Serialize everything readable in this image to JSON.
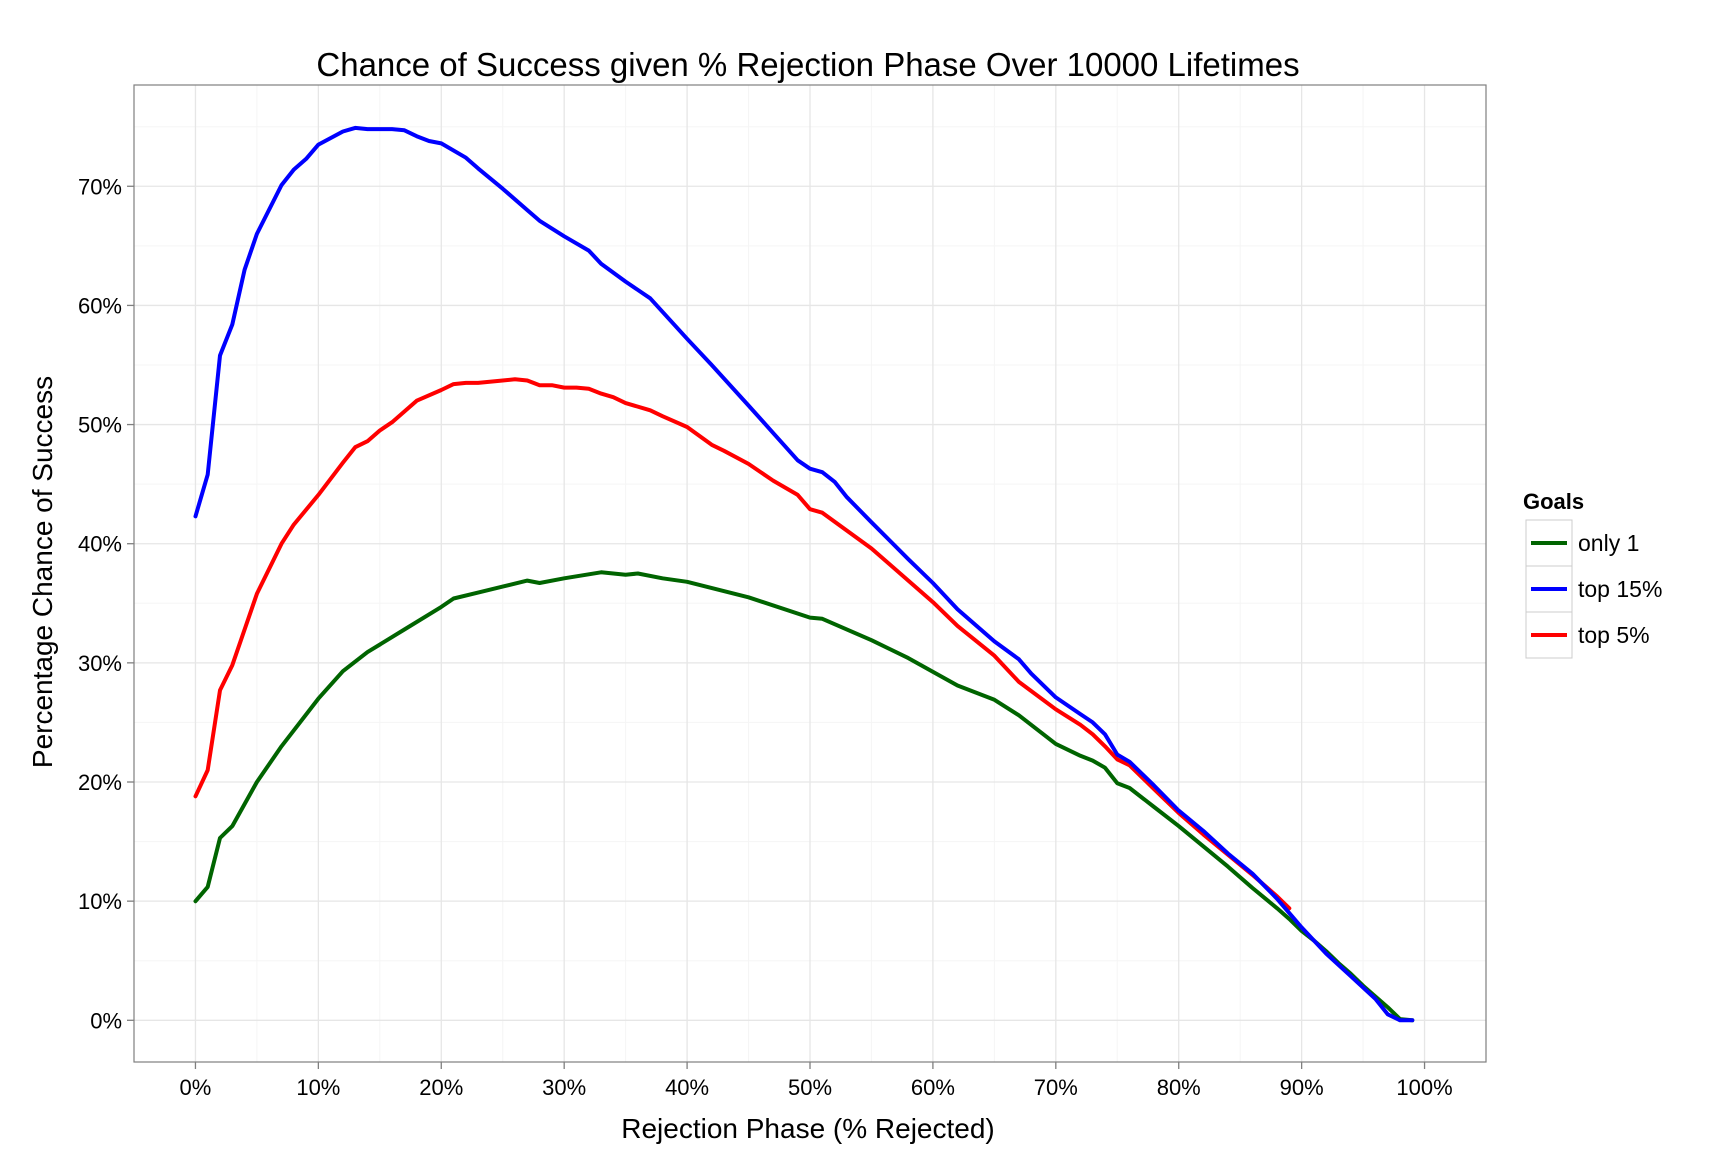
{
  "chart_data": {
    "type": "line",
    "title": "Chance of Success given % Rejection Phase Over 10000 Lifetimes",
    "xlabel": "Rejection Phase (% Rejected)",
    "ylabel": "Percentage Chance of Success",
    "xlim": [
      -5,
      105
    ],
    "ylim": [
      -3.5,
      78.5
    ],
    "x_ticks": [
      0,
      10,
      20,
      30,
      40,
      50,
      60,
      70,
      80,
      90,
      100
    ],
    "x_tick_labels": [
      "0%",
      "10%",
      "20%",
      "30%",
      "40%",
      "50%",
      "60%",
      "70%",
      "80%",
      "90%",
      "100%"
    ],
    "y_ticks": [
      0,
      10,
      20,
      30,
      40,
      50,
      60,
      70
    ],
    "y_tick_labels": [
      "0%",
      "10%",
      "20%",
      "30%",
      "40%",
      "50%",
      "60%",
      "70%"
    ],
    "grid": true,
    "legend": {
      "title": "Goals",
      "position": "right"
    },
    "series": [
      {
        "name": "only 1",
        "color": "#006400",
        "x": [
          0,
          1,
          2,
          3,
          5,
          7,
          10,
          12,
          14,
          17,
          20,
          21,
          23,
          25,
          27,
          28,
          30,
          33,
          35,
          36,
          38,
          40,
          45,
          50,
          51,
          55,
          58,
          62,
          65,
          67,
          70,
          72,
          73,
          74,
          75,
          76,
          78,
          80,
          82,
          84,
          86,
          88,
          89,
          90,
          91,
          92,
          93,
          94,
          95,
          96,
          97,
          98,
          99
        ],
        "y": [
          10,
          11.2,
          15.3,
          16.3,
          20,
          23,
          27,
          29.3,
          30.9,
          32.8,
          34.7,
          35.4,
          35.9,
          36.4,
          36.9,
          36.7,
          37.1,
          37.6,
          37.4,
          37.5,
          37.1,
          36.8,
          35.5,
          33.8,
          33.7,
          31.9,
          30.4,
          28.1,
          26.9,
          25.6,
          23.2,
          22.2,
          21.8,
          21.2,
          19.9,
          19.5,
          17.9,
          16.3,
          14.6,
          12.9,
          11.1,
          9.4,
          8.5,
          7.5,
          6.7,
          5.8,
          4.8,
          3.9,
          2.9,
          2,
          1.1,
          0.1,
          0
        ]
      },
      {
        "name": "top 15%",
        "color": "#0000FF",
        "x": [
          0,
          1,
          2,
          3,
          4,
          5,
          7,
          8,
          9,
          10,
          12,
          13,
          14,
          15,
          16,
          17,
          18,
          19,
          20,
          22,
          23,
          25,
          27,
          28,
          30,
          32,
          33,
          35,
          37,
          40,
          42,
          45,
          47,
          49,
          50,
          51,
          52,
          53,
          55,
          58,
          60,
          62,
          65,
          67,
          68,
          70,
          72,
          73,
          74,
          75,
          76,
          78,
          80,
          82,
          84,
          86,
          88,
          90,
          92,
          94,
          96,
          97,
          98,
          99
        ],
        "y": [
          42.3,
          45.8,
          55.8,
          58.4,
          63,
          66,
          70.1,
          71.4,
          72.3,
          73.5,
          74.6,
          74.9,
          74.8,
          74.8,
          74.8,
          74.7,
          74.2,
          73.8,
          73.6,
          72.4,
          71.5,
          69.8,
          68,
          67.1,
          65.8,
          64.6,
          63.5,
          62,
          60.6,
          57.2,
          55,
          51.6,
          49.3,
          47,
          46.3,
          46,
          45.2,
          43.9,
          41.8,
          38.7,
          36.7,
          34.5,
          31.8,
          30.3,
          29.1,
          27.1,
          25.7,
          25,
          24,
          22.3,
          21.7,
          19.7,
          17.6,
          15.9,
          14,
          12.3,
          10.2,
          7.8,
          5.6,
          3.7,
          1.8,
          0.5,
          0,
          0
        ]
      },
      {
        "name": "top 5%",
        "color": "#FF0000",
        "x": [
          0,
          1,
          2,
          3,
          4,
          5,
          7,
          8,
          10,
          12,
          13,
          14,
          15,
          16,
          17,
          18,
          20,
          21,
          22,
          23,
          25,
          26,
          27,
          28,
          29,
          30,
          31,
          32,
          33,
          34,
          35,
          37,
          38,
          40,
          42,
          43,
          45,
          47,
          49,
          50,
          51,
          53,
          55,
          58,
          60,
          62,
          65,
          67,
          70,
          72,
          73,
          74,
          75,
          76,
          78,
          80,
          82,
          84,
          86,
          88,
          89
        ],
        "y": [
          18.8,
          21,
          27.7,
          29.8,
          32.8,
          35.8,
          40,
          41.6,
          44.1,
          46.8,
          48.1,
          48.6,
          49.5,
          50.2,
          51.1,
          52,
          52.9,
          53.4,
          53.5,
          53.5,
          53.7,
          53.8,
          53.7,
          53.3,
          53.3,
          53.1,
          53.1,
          53,
          52.6,
          52.3,
          51.8,
          51.2,
          50.7,
          49.8,
          48.3,
          47.8,
          46.7,
          45.3,
          44.1,
          42.9,
          42.6,
          41.1,
          39.6,
          36.9,
          35.1,
          33.1,
          30.6,
          28.4,
          26.1,
          24.8,
          24,
          23,
          21.9,
          21.4,
          19.4,
          17.4,
          15.6,
          13.9,
          12.2,
          10.4,
          9.4
        ]
      }
    ]
  }
}
